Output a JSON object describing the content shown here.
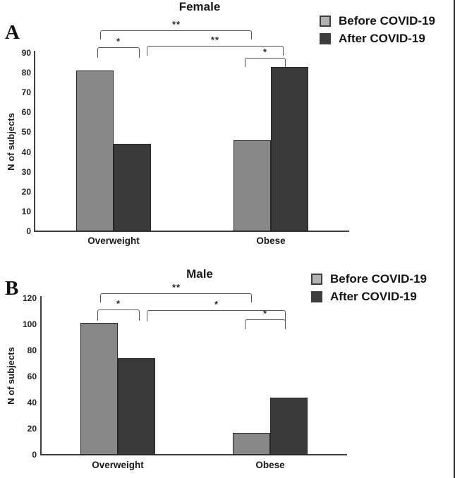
{
  "figure_border_color": "#2b2b2b",
  "colors": {
    "before_bar_fill": "#888888",
    "after_bar_fill": "#3a3a3a",
    "bar_border": "#262626",
    "legend_before_fill": "#b2b2b2",
    "legend_after_fill": "#3d3d3d",
    "axis": "#3f3f3f",
    "bracket": "#555555",
    "text": "#1a1a1a"
  },
  "chart_data": [
    {
      "panel_letter": "A",
      "type": "bar",
      "title": "Female",
      "xlabel": "",
      "ylabel": "N of subjects",
      "categories": [
        "Overweight",
        "Obese"
      ],
      "series": [
        {
          "name": "Before COVID-19",
          "values": [
            81,
            46
          ]
        },
        {
          "name": "After COVID-19",
          "values": [
            44,
            83
          ]
        }
      ],
      "ylim": [
        0,
        90
      ],
      "yticks": [
        0,
        10,
        20,
        30,
        40,
        50,
        60,
        70,
        80,
        90
      ],
      "grid": false,
      "legend_position": "top-right",
      "significance_brackets": [
        {
          "from": "Overweight Before COVID-19",
          "to": "Obese Before COVID-19",
          "label": "**"
        },
        {
          "from": "Overweight Before COVID-19",
          "to": "Overweight After COVID-19",
          "label": "*"
        },
        {
          "from": "Overweight After COVID-19",
          "to": "Obese After COVID-19",
          "label": "**"
        },
        {
          "from": "Obese Before COVID-19",
          "to": "Obese After COVID-19",
          "label": "*"
        }
      ]
    },
    {
      "panel_letter": "B",
      "type": "bar",
      "title": "Male",
      "xlabel": "",
      "ylabel": "N of subjects",
      "categories": [
        "Overweight",
        "Obese"
      ],
      "series": [
        {
          "name": "Before COVID-19",
          "values": [
            101,
            17
          ]
        },
        {
          "name": "After COVID-19",
          "values": [
            74,
            44
          ]
        }
      ],
      "ylim": [
        0,
        120
      ],
      "yticks": [
        0,
        20,
        40,
        60,
        80,
        100,
        120
      ],
      "grid": false,
      "legend_position": "top-right",
      "significance_brackets": [
        {
          "from": "Overweight Before COVID-19",
          "to": "Obese Before COVID-19",
          "label": "**"
        },
        {
          "from": "Overweight Before COVID-19",
          "to": "Overweight After COVID-19",
          "label": "*"
        },
        {
          "from": "Overweight After COVID-19",
          "to": "Obese After COVID-19",
          "label": "*"
        },
        {
          "from": "Obese Before COVID-19",
          "to": "Obese After COVID-19",
          "label": "*"
        }
      ]
    }
  ]
}
